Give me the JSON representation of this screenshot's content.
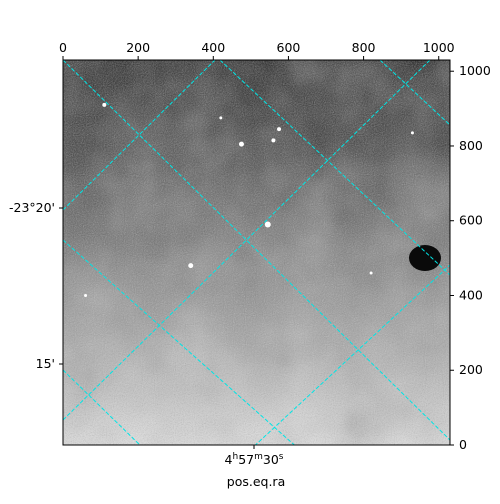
{
  "chart_data": {
    "type": "heatmap",
    "description_colormap": "grayscale",
    "x_range": [
      0,
      1030
    ],
    "y_range": [
      0,
      1030
    ],
    "top_ticks": [
      "0",
      "200",
      "400",
      "600",
      "800",
      "1000"
    ],
    "top_tick_values": [
      0,
      200,
      400,
      600,
      800,
      1000
    ],
    "right_ticks": [
      "0",
      "200",
      "400",
      "600",
      "800",
      "1000"
    ],
    "right_tick_values": [
      0,
      200,
      400,
      600,
      800,
      1000
    ],
    "left_ticks": [
      "-23°20'",
      "15'"
    ],
    "bottom_tick": {
      "base": "4",
      "h": "h",
      "m_val": "57",
      "m": "m",
      "s_val": "30",
      "s": "s"
    },
    "xlabel": "pos.eq.ra",
    "grid_color": "#00e5e5",
    "stars": [
      {
        "x": 110,
        "y": 910,
        "r": 2
      },
      {
        "x": 420,
        "y": 875,
        "r": 1.5
      },
      {
        "x": 475,
        "y": 805,
        "r": 2.5
      },
      {
        "x": 560,
        "y": 815,
        "r": 2
      },
      {
        "x": 575,
        "y": 845,
        "r": 2
      },
      {
        "x": 545,
        "y": 590,
        "r": 3
      },
      {
        "x": 340,
        "y": 480,
        "r": 2.5
      },
      {
        "x": 930,
        "y": 835,
        "r": 1.5
      },
      {
        "x": 60,
        "y": 400,
        "r": 1.5
      },
      {
        "x": 820,
        "y": 460,
        "r": 1.5
      }
    ]
  }
}
